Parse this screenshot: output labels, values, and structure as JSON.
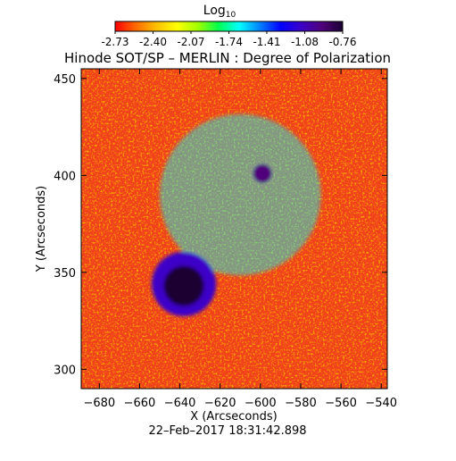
{
  "chart_data": {
    "type": "heatmap",
    "title": "Hinode SOT/SP – MERLIN : Degree of Polarization",
    "xlabel": "X (Arcseconds)",
    "ylabel": "Y (Arcseconds)",
    "timestamp": "22–Feb–2017 18:31:42.898",
    "colorbar": {
      "label_main": "Log",
      "label_sub": "10",
      "ticks": [
        "-2.73",
        "-2.40",
        "-2.07",
        "-1.74",
        "-1.41",
        "-1.08",
        "-0.76"
      ],
      "range": [
        -2.73,
        -0.76
      ],
      "colormap": [
        "#ff0000",
        "#ff6a00",
        "#ffc000",
        "#ffff00",
        "#a0ff00",
        "#00ff50",
        "#00ffff",
        "#0080ff",
        "#0000ff",
        "#3c00c8",
        "#50007a",
        "#1a0030"
      ]
    },
    "x_ticks": [
      -680,
      -660,
      -640,
      -620,
      -600,
      -580,
      -560,
      -540
    ],
    "y_ticks": [
      300,
      350,
      400,
      450
    ],
    "xlim": [
      -689,
      -537
    ],
    "ylim": [
      290,
      455
    ],
    "features": [
      {
        "name": "sunspot umbra",
        "x": -638,
        "y": 343,
        "radius": 10,
        "level": -0.76
      },
      {
        "name": "sunspot penumbra",
        "x": -638,
        "y": 344,
        "radius": 16,
        "level": -1.1
      },
      {
        "name": "pore",
        "x": -599,
        "y": 401,
        "radius": 5,
        "level": -0.9
      },
      {
        "name": "plage network",
        "x": -610,
        "y": 390,
        "radius": 40,
        "level": -1.6
      }
    ]
  }
}
